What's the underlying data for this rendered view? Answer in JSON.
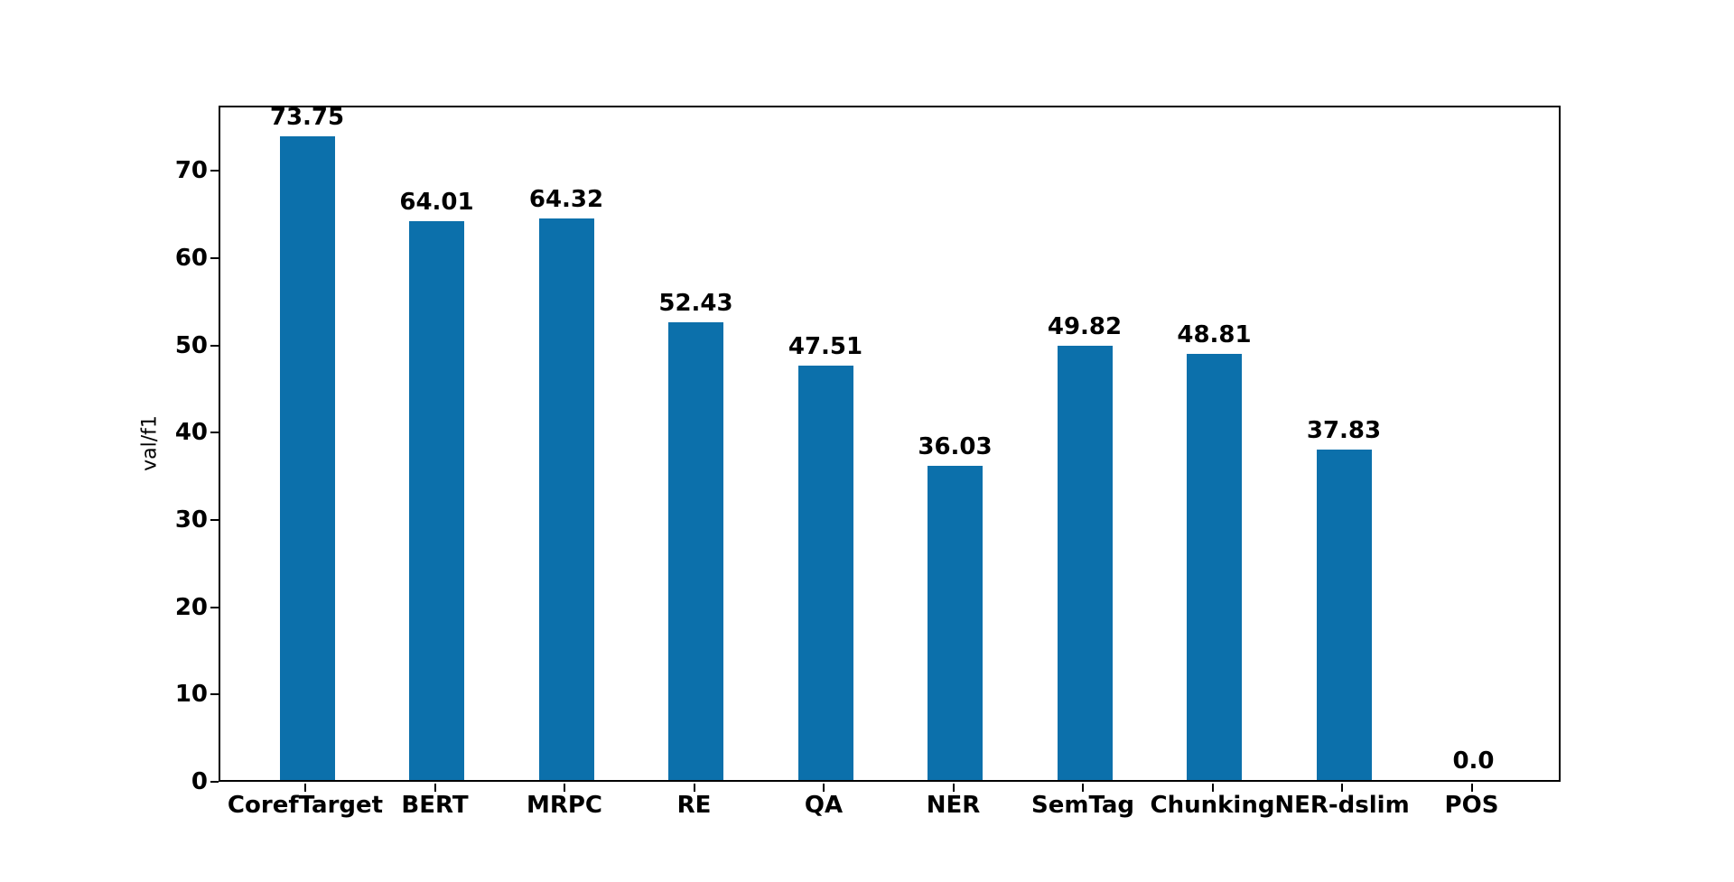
{
  "chart_data": {
    "type": "bar",
    "title": "",
    "xlabel": "",
    "ylabel": "val/f1",
    "categories": [
      "CorefTarget",
      "BERT",
      "MRPC",
      "RE",
      "QA",
      "NER",
      "SemTag",
      "Chunking",
      "NER-dslim",
      "POS"
    ],
    "values": [
      73.75,
      64.01,
      64.32,
      52.43,
      47.51,
      36.03,
      49.82,
      48.81,
      37.83,
      0.0
    ],
    "bar_labels": [
      "73.75",
      "64.01",
      "64.32",
      "52.43",
      "47.51",
      "36.03",
      "49.82",
      "48.81",
      "37.83",
      "0.0"
    ],
    "yticks": [
      0,
      10,
      20,
      30,
      40,
      50,
      60,
      70
    ],
    "ylim": [
      0,
      77.5
    ],
    "grid": false,
    "legend": null,
    "bar_color": "#0c70ab",
    "axis_color": "#000000",
    "text_color": "#000000",
    "background_color": "#ffffff"
  }
}
